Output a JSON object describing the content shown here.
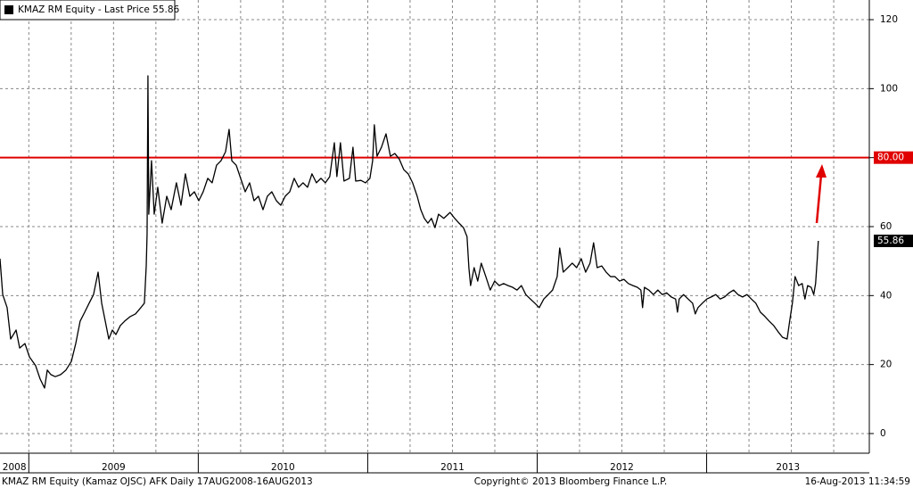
{
  "chart_data": {
    "type": "line",
    "series": [
      {
        "name": "KMAZ RM Equity - Last Price 55.86",
        "color": "#000000",
        "values": [
          50.7,
          40.3,
          36.5,
          27.4,
          30,
          24.8,
          26.1,
          22.2,
          19.7,
          15.8,
          13.2,
          18.4,
          17.1,
          16.5,
          17.1,
          18.4,
          20.9,
          26.1,
          32.6,
          35.2,
          37.8,
          40.3,
          46.8,
          37.8,
          32.6,
          27.4,
          30,
          28.7,
          31.3,
          32.6,
          33.9,
          34.7,
          36.5,
          37.8,
          48.6,
          57.9,
          103.7,
          63.6,
          79.1,
          63.6,
          71.4,
          61,
          68.8,
          64.9,
          72.7,
          66.2,
          75.3,
          68.8,
          70.1,
          67.5,
          70.1,
          74,
          72.7,
          77.8,
          79.1,
          81.7,
          88.2,
          79.1,
          77.8,
          74,
          70.1,
          72.7,
          67.5,
          68.8,
          64.9,
          68.8,
          70.1,
          67.5,
          66.2,
          68.8,
          70.1,
          74,
          71.4,
          72.7,
          71.4,
          75.3,
          72.7,
          74,
          72.7,
          74.5,
          84.3,
          74.5,
          84.3,
          73.2,
          74,
          83,
          73.2,
          73.4,
          72.7,
          74,
          79.1,
          89.5,
          80.4,
          83,
          86.9,
          80.4,
          81.2,
          79.6,
          76.5,
          75.3,
          72.7,
          68.8,
          64.9,
          62.4,
          61,
          62.4,
          59.7,
          63.6,
          62.4,
          64.1,
          62.4,
          61,
          59.7,
          57.1,
          48.1,
          42.9,
          48.1,
          44.2,
          49.4,
          45.5,
          41.6,
          44.2,
          42.9,
          43.5,
          42.9,
          42.4,
          41.6,
          42.9,
          40.3,
          39,
          37.8,
          36.5,
          39,
          40.3,
          41.6,
          45.5,
          53.8,
          46.8,
          48.1,
          49.4,
          48.1,
          50.7,
          46.8,
          49.4,
          55.3,
          48.1,
          48.6,
          46.8,
          45.5,
          45.5,
          44.2,
          44.7,
          43.5,
          42.9,
          42.4,
          41.6,
          36.5,
          42.4,
          41.6,
          40.3,
          41.6,
          40.3,
          40.8,
          39.6,
          39,
          35.2,
          39,
          40.3,
          39,
          37.8,
          34.7,
          36.5,
          37.8,
          39,
          39.6,
          40.3,
          39,
          39.6,
          40.8,
          41.6,
          40.3,
          39.6,
          40.3,
          39,
          37.8,
          35.2,
          34,
          32.6,
          31.3,
          29.5,
          27.9,
          27.4,
          32.6,
          37.8,
          45.5,
          42.9,
          43.5,
          39,
          42.9,
          42.4,
          40.3,
          43.5,
          50.7,
          55.86
        ]
      }
    ],
    "x": [
      2008.83,
      2008.846,
      2008.872,
      2008.893,
      2008.925,
      2008.946,
      2008.977,
      2009.004,
      2009.04,
      2009.067,
      2009.093,
      2009.109,
      2009.13,
      2009.156,
      2009.188,
      2009.219,
      2009.251,
      2009.277,
      2009.303,
      2009.33,
      2009.356,
      2009.382,
      2009.409,
      2009.43,
      2009.451,
      2009.472,
      2009.493,
      2009.514,
      2009.54,
      2009.566,
      2009.598,
      2009.63,
      2009.661,
      2009.682,
      2009.693,
      2009.698,
      2009.703,
      2009.708,
      2009.724,
      2009.74,
      2009.761,
      2009.787,
      2009.814,
      2009.84,
      2009.871,
      2009.898,
      2009.924,
      2009.95,
      2009.977,
      2010.003,
      2010.029,
      2010.056,
      2010.082,
      2010.108,
      2010.134,
      2010.161,
      2010.182,
      2010.198,
      2010.224,
      2010.25,
      2010.277,
      2010.303,
      2010.329,
      2010.355,
      2010.382,
      2010.408,
      2010.434,
      2010.461,
      2010.487,
      2010.513,
      2010.54,
      2010.566,
      2010.592,
      2010.618,
      2010.645,
      2010.671,
      2010.697,
      2010.724,
      2010.75,
      2010.776,
      2010.803,
      2010.818,
      2010.839,
      2010.86,
      2010.892,
      2010.913,
      2010.929,
      2010.96,
      2010.987,
      2011.013,
      2011.029,
      2011.039,
      2011.055,
      2011.081,
      2011.108,
      2011.134,
      2011.16,
      2011.186,
      2011.213,
      2011.239,
      2011.265,
      2011.292,
      2011.313,
      2011.334,
      2011.355,
      2011.376,
      2011.397,
      2011.418,
      2011.449,
      2011.486,
      2011.513,
      2011.539,
      2011.565,
      2011.586,
      2011.597,
      2011.607,
      2011.628,
      2011.649,
      2011.67,
      2011.697,
      2011.723,
      2011.749,
      2011.776,
      2011.802,
      2011.828,
      2011.855,
      2011.881,
      2011.907,
      2011.933,
      2011.96,
      2011.986,
      2012.012,
      2012.039,
      2012.065,
      2012.091,
      2012.118,
      2012.133,
      2012.154,
      2012.181,
      2012.207,
      2012.233,
      2012.26,
      2012.286,
      2012.312,
      2012.333,
      2012.354,
      2012.381,
      2012.407,
      2012.433,
      2012.459,
      2012.486,
      2012.512,
      2012.538,
      2012.565,
      2012.591,
      2012.612,
      2012.622,
      2012.633,
      2012.659,
      2012.686,
      2012.712,
      2012.738,
      2012.764,
      2012.791,
      2012.817,
      2012.828,
      2012.838,
      2012.864,
      2012.891,
      2012.917,
      2012.933,
      2012.949,
      2012.975,
      2013.001,
      2013.027,
      2013.054,
      2013.08,
      2013.106,
      2013.133,
      2013.159,
      2013.185,
      2013.212,
      2013.238,
      2013.264,
      2013.29,
      2013.317,
      2013.343,
      2013.369,
      2013.396,
      2013.422,
      2013.448,
      2013.475,
      2013.49,
      2013.506,
      2013.522,
      2013.543,
      2013.564,
      2013.58,
      2013.596,
      2013.617,
      2013.632,
      2013.643,
      2013.653,
      2013.659
    ],
    "xlim": [
      2008.83,
      2013.96
    ],
    "xticks": [
      2009,
      2010,
      2011,
      2012,
      2013
    ],
    "x_labels": [
      "2008",
      "2009",
      "2010",
      "2011",
      "2012",
      "2013"
    ],
    "xminorticks": [
      2009,
      2009.25,
      2009.5,
      2009.75,
      2010,
      2010.25,
      2010.5,
      2010.75,
      2011,
      2011.25,
      2011.5,
      2011.75,
      2012,
      2012.25,
      2012.5,
      2012.75,
      2013,
      2013.25,
      2013.5,
      2013.75
    ],
    "ylim": [
      -5.7,
      125.7
    ],
    "yticks": [
      0,
      20,
      40,
      60,
      80,
      100,
      120
    ],
    "grid": true,
    "hline": {
      "value": 80,
      "label": "80.00",
      "color": "#e00000"
    },
    "source": "KMAZ RM Equity (Kamaz OJSC) AFK  Daily 17AUG2008-16AUG2013",
    "copyright": "Copyright© 2013 Bloomberg Finance L.P.",
    "timestamp": "16-Aug-2013 11:34:59"
  }
}
